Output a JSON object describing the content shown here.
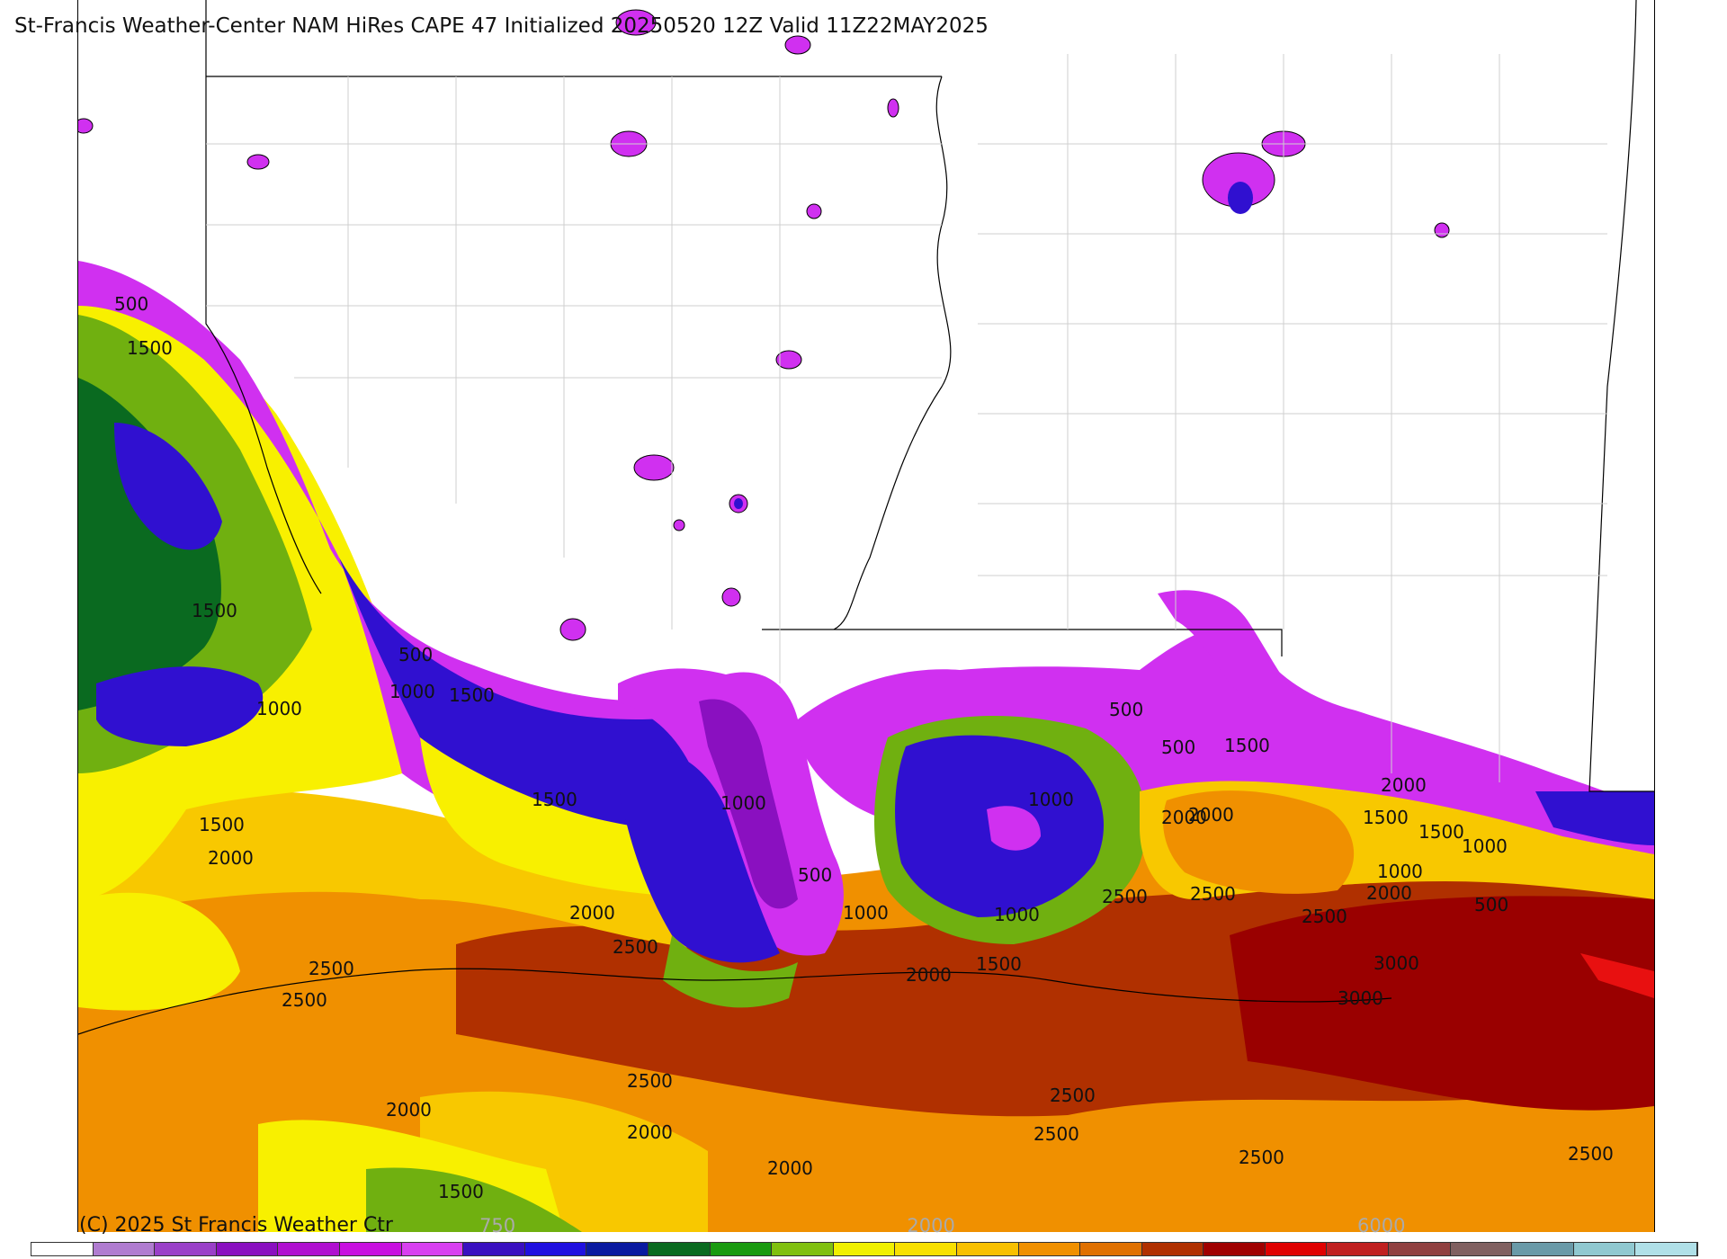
{
  "title": "St-Francis Weather-Center NAM HiRes CAPE  47 Initialized 20250520 12Z Valid 11Z22MAY2025",
  "copyright": "(C) 2025 St Francis Weather Ctr",
  "colorbar": {
    "colors": [
      "#ffffff",
      "#b07cd0",
      "#9a40c8",
      "#8a10c0",
      "#b010d0",
      "#c810e0",
      "#d840f0",
      "#3a10c0",
      "#2010e0",
      "#0a1aa0",
      "#0a6a20",
      "#1a9a10",
      "#80c010",
      "#f0f000",
      "#f8e000",
      "#f8c000",
      "#f09000",
      "#e07000",
      "#b03000",
      "#a00000",
      "#e00000",
      "#c02020",
      "#904040",
      "#806060",
      "#6a9aa8",
      "#90c8d0",
      "#b0e0e8"
    ],
    "tick_labels": [
      "750",
      "2000",
      "6000"
    ]
  },
  "contour_labels": [
    "500",
    "1500",
    "1500",
    "500",
    "1000",
    "1500",
    "1000",
    "1500",
    "1500",
    "2000",
    "1000",
    "2000",
    "2500",
    "2500",
    "2500",
    "500",
    "1000",
    "2000",
    "1000",
    "1500",
    "2000",
    "2500",
    "1000",
    "1500",
    "500",
    "1500",
    "2000",
    "2500",
    "2000",
    "1500",
    "1000",
    "2000",
    "2500",
    "3000",
    "3000",
    "500",
    "1000",
    "500",
    "2500",
    "2000",
    "2000",
    "2500",
    "2500",
    "2000",
    "2500",
    "2500",
    "1500"
  ],
  "legend_colors": {
    "purple_low": "#b010d0",
    "magenta": "#d030f0",
    "blue": "#3010d0",
    "darkgreen": "#0a6a20",
    "green": "#70b010",
    "yellow": "#f8f000",
    "gold": "#f8c800",
    "orange": "#f09000",
    "rust": "#b03000",
    "darkred": "#9a0000",
    "red": "#e81010"
  }
}
